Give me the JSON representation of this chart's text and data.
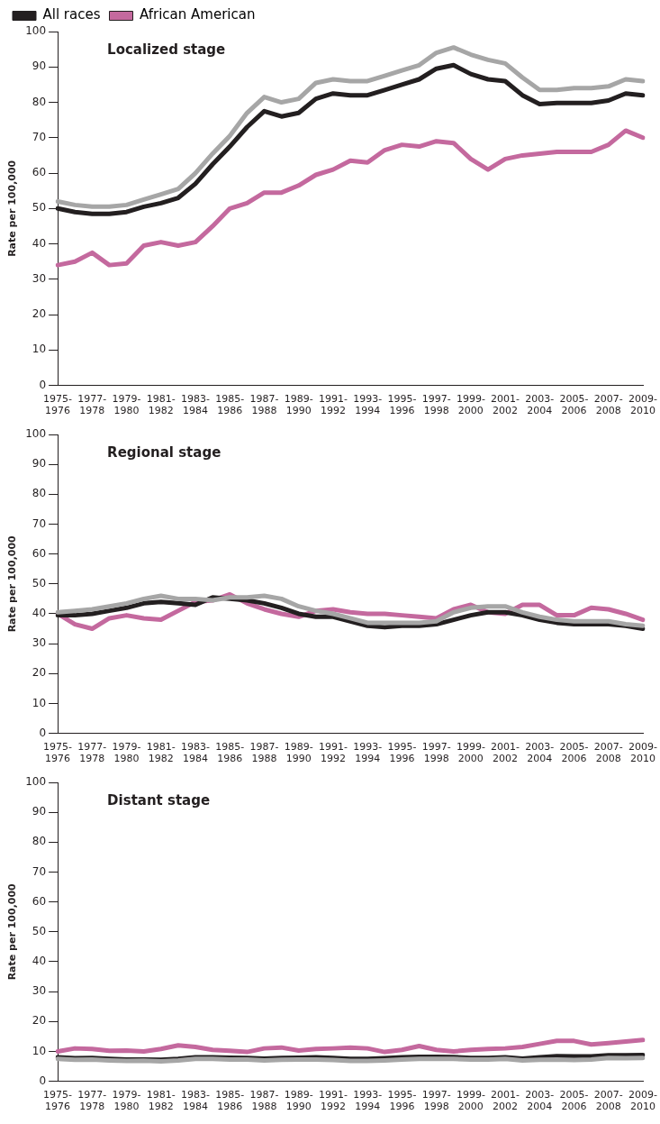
{
  "chart_data": [
    {
      "type": "line",
      "title": "Localized stage",
      "ylabel": "Rate per 100,000",
      "legend": "top left",
      "grid": false,
      "marker": "none",
      "line_style": "solid",
      "ylim": [
        0,
        100
      ],
      "yticks": [
        0,
        10,
        20,
        30,
        40,
        50,
        60,
        70,
        80,
        90,
        100
      ],
      "categories": [
        "1975-1976",
        null,
        "1977-1978",
        null,
        "1979-1980",
        null,
        "1981-1982",
        null,
        "1983-1984",
        null,
        "1985-1986",
        null,
        "1987-1988",
        null,
        "1989-1990",
        null,
        "1991-1992",
        null,
        "1993-1994",
        null,
        "1995-1996",
        null,
        "1997-1998",
        null,
        "1999-2000",
        null,
        "2001-2002",
        null,
        "2003-2004",
        null,
        "2005-2006",
        null,
        "2007-2008",
        null,
        "2009-2010"
      ],
      "series": [
        {
          "color": "#a6a6a6",
          "values": [
            52,
            51,
            50.5,
            50.5,
            51,
            52.5,
            54,
            55.5,
            60,
            65.5,
            70.5,
            77,
            81.5,
            80,
            81,
            85.5,
            86.5,
            86,
            86,
            87.5,
            89,
            90.5,
            94,
            95.5,
            93.5,
            92,
            91,
            87,
            83.5,
            83.5,
            84,
            84,
            84.5,
            86.5,
            86
          ]
        },
        {
          "name": "All races",
          "color": "#231f20",
          "values": [
            50,
            49,
            48.5,
            48.5,
            49,
            50.5,
            51.5,
            53,
            57,
            62.5,
            67.5,
            73,
            77.5,
            76,
            77,
            81,
            82.5,
            82,
            82,
            83.5,
            85,
            86.5,
            89.5,
            90.5,
            88,
            86.5,
            86,
            82,
            79.5,
            79.8,
            79.8,
            79.8,
            80.5,
            82.5,
            82
          ]
        },
        {
          "name": "African American",
          "color": "#c4699e",
          "values": [
            34,
            35,
            37.5,
            34,
            34.5,
            39.5,
            40.5,
            39.5,
            40.5,
            45,
            50,
            51.5,
            54.5,
            54.5,
            56.5,
            59.5,
            61,
            63.5,
            63,
            66.5,
            68,
            67.5,
            69,
            68.5,
            64,
            61,
            64,
            65,
            65.5,
            66,
            66,
            66,
            68,
            72,
            70
          ]
        }
      ]
    },
    {
      "type": "line",
      "title": "Regional stage",
      "ylabel": "Rate per 100,000",
      "legend": false,
      "grid": false,
      "marker": "none",
      "line_style": "solid",
      "ylim": [
        0,
        100
      ],
      "yticks": [
        0,
        10,
        20,
        30,
        40,
        50,
        60,
        70,
        80,
        90,
        100
      ],
      "categories": [
        "1975-1976",
        null,
        "1977-1978",
        null,
        "1979-1980",
        null,
        "1981-1982",
        null,
        "1983-1984",
        null,
        "1985-1986",
        null,
        "1987-1988",
        null,
        "1989-1990",
        null,
        "1991-1992",
        null,
        "1993-1994",
        null,
        "1995-1996",
        null,
        "1997-1998",
        null,
        "1999-2000",
        null,
        "2001-2002",
        null,
        "2003-2004",
        null,
        "2005-2006",
        null,
        "2007-2008",
        null,
        "2009-2010"
      ],
      "series": [
        {
          "color": "#a6a6a6",
          "values": [
            40.5,
            41,
            41.5,
            42.5,
            43.5,
            45,
            46,
            45,
            45,
            44.5,
            45.5,
            45.5,
            46,
            45,
            42.5,
            41,
            40,
            38.5,
            37,
            37,
            37,
            37,
            37.5,
            40.5,
            42,
            42.5,
            42.5,
            40.5,
            39,
            38,
            37.5,
            37.5,
            37.5,
            36.5,
            36
          ]
        },
        {
          "color": "#231f20",
          "values": [
            39.5,
            39.5,
            40,
            41,
            42,
            43.5,
            44,
            43.5,
            43,
            45.5,
            45,
            44.5,
            43.5,
            42,
            40,
            39,
            39,
            37.5,
            36,
            35.5,
            36,
            36,
            36.5,
            38,
            39.5,
            40.5,
            40.5,
            39.5,
            38,
            37,
            36.5,
            36.5,
            36.5,
            36,
            35
          ]
        },
        {
          "color": "#c4699e",
          "values": [
            40,
            36.5,
            35,
            38.5,
            39.5,
            38.5,
            38,
            41,
            44,
            44.5,
            46.5,
            43.5,
            41.5,
            40,
            39,
            41,
            41.5,
            40.5,
            40,
            40,
            39.5,
            39,
            38.5,
            41.5,
            43,
            40.5,
            40,
            43,
            43,
            39.5,
            39.5,
            42,
            41.5,
            40,
            38
          ]
        }
      ]
    },
    {
      "type": "line",
      "title": "Distant stage",
      "ylabel": "Rate per 100,000",
      "legend": false,
      "grid": false,
      "marker": "none",
      "line_style": "solid",
      "ylim": [
        0,
        100
      ],
      "yticks": [
        0,
        10,
        20,
        30,
        40,
        50,
        60,
        70,
        80,
        90,
        100
      ],
      "categories": [
        "1975-1976",
        null,
        "1977-1978",
        null,
        "1979-1980",
        null,
        "1981-1982",
        null,
        "1983-1984",
        null,
        "1985-1986",
        null,
        "1987-1988",
        null,
        "1989-1990",
        null,
        "1991-1992",
        null,
        "1993-1994",
        null,
        "1995-1996",
        null,
        "1997-1998",
        null,
        "1999-2000",
        null,
        "2001-2002",
        null,
        "2003-2004",
        null,
        "2005-2006",
        null,
        "2007-2008",
        null,
        "2009-2010"
      ],
      "series": [
        {
          "color": "#a6a6a6",
          "values": [
            7.5,
            7.2,
            7.3,
            7,
            6.8,
            6.9,
            6.7,
            7,
            7.5,
            7.5,
            7.3,
            7.3,
            7,
            7.2,
            7.3,
            7.3,
            7.1,
            6.8,
            6.8,
            7,
            7.3,
            7.5,
            7.5,
            7.5,
            7.3,
            7.3,
            7.5,
            7,
            7.2,
            7.3,
            7.1,
            7.3,
            7.8,
            7.7,
            7.8
          ]
        },
        {
          "color": "#231f20",
          "values": [
            8,
            7.7,
            7.8,
            7.5,
            7.3,
            7.3,
            7.2,
            7.5,
            8,
            8,
            7.9,
            7.8,
            7.6,
            7.8,
            7.9,
            8,
            7.8,
            7.5,
            7.5,
            7.7,
            8,
            8.2,
            8.2,
            8.1,
            7.8,
            7.8,
            8,
            7.6,
            8,
            8.4,
            8.3,
            8.3,
            8.7,
            8.7,
            8.8
          ]
        },
        {
          "color": "#c4699e",
          "values": [
            10,
            11,
            10.8,
            10.2,
            10.3,
            10,
            10.8,
            12,
            11.5,
            10.5,
            10.2,
            9.8,
            11,
            11.3,
            10.3,
            10.8,
            11,
            11.3,
            11,
            9.8,
            10.5,
            11.8,
            10.5,
            10,
            10.5,
            10.8,
            11,
            11.5,
            12.5,
            13.5,
            13.5,
            12.3,
            12.8,
            13.3,
            13.8
          ]
        }
      ]
    }
  ]
}
